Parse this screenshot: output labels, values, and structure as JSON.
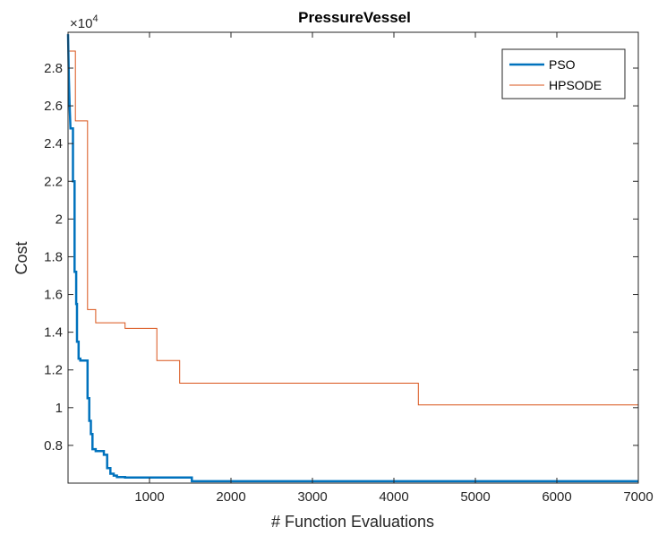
{
  "chart_data": {
    "type": "line",
    "title": "PressureVessel",
    "xlabel": "# Function Evaluations",
    "ylabel": "Cost",
    "xlim": [
      0,
      7000
    ],
    "ylim": [
      6000,
      29900
    ],
    "y_exponent_label": "×10",
    "y_exponent_power": "4",
    "x_ticks": [
      1000,
      2000,
      3000,
      4000,
      5000,
      6000,
      7000
    ],
    "x_tick_labels": [
      "1000",
      "2000",
      "3000",
      "4000",
      "5000",
      "6000",
      "7000"
    ],
    "y_ticks": [
      8000,
      10000,
      12000,
      14000,
      16000,
      18000,
      20000,
      22000,
      24000,
      26000,
      28000
    ],
    "y_tick_labels": [
      "0.8",
      "1",
      "1.2",
      "1.4",
      "1.6",
      "1.8",
      "2",
      "2.2",
      "2.4",
      "2.6",
      "2.8"
    ],
    "grid": false,
    "legend_position": "top-right",
    "series": [
      {
        "name": "PSO",
        "color": "#0072BD",
        "line_width": "thick",
        "x": [
          0,
          10,
          20,
          30,
          60,
          60,
          80,
          80,
          100,
          100,
          110,
          110,
          130,
          130,
          150,
          150,
          240,
          240,
          260,
          260,
          280,
          280,
          300,
          300,
          340,
          340,
          440,
          440,
          480,
          480,
          520,
          520,
          560,
          560,
          600,
          600,
          700,
          700,
          1520,
          1520,
          7000
        ],
        "y": [
          29800,
          27500,
          26000,
          24800,
          24800,
          22000,
          22000,
          17200,
          17200,
          15500,
          15500,
          13500,
          13500,
          12600,
          12600,
          12500,
          12500,
          10500,
          10500,
          9300,
          9300,
          8600,
          8600,
          7800,
          7800,
          7700,
          7700,
          7500,
          7500,
          6800,
          6800,
          6500,
          6500,
          6400,
          6400,
          6320,
          6320,
          6300,
          6300,
          6100,
          6100
        ]
      },
      {
        "name": "HPSODE",
        "color": "#D95319",
        "line_width": "thin",
        "x": [
          0,
          90,
          90,
          240,
          240,
          340,
          340,
          700,
          700,
          1090,
          1090,
          1370,
          1370,
          4300,
          4300,
          7000
        ],
        "y": [
          28900,
          28900,
          25200,
          25200,
          15200,
          15200,
          14500,
          14500,
          14200,
          14200,
          12500,
          12500,
          11300,
          11300,
          10150,
          10150
        ]
      }
    ]
  }
}
